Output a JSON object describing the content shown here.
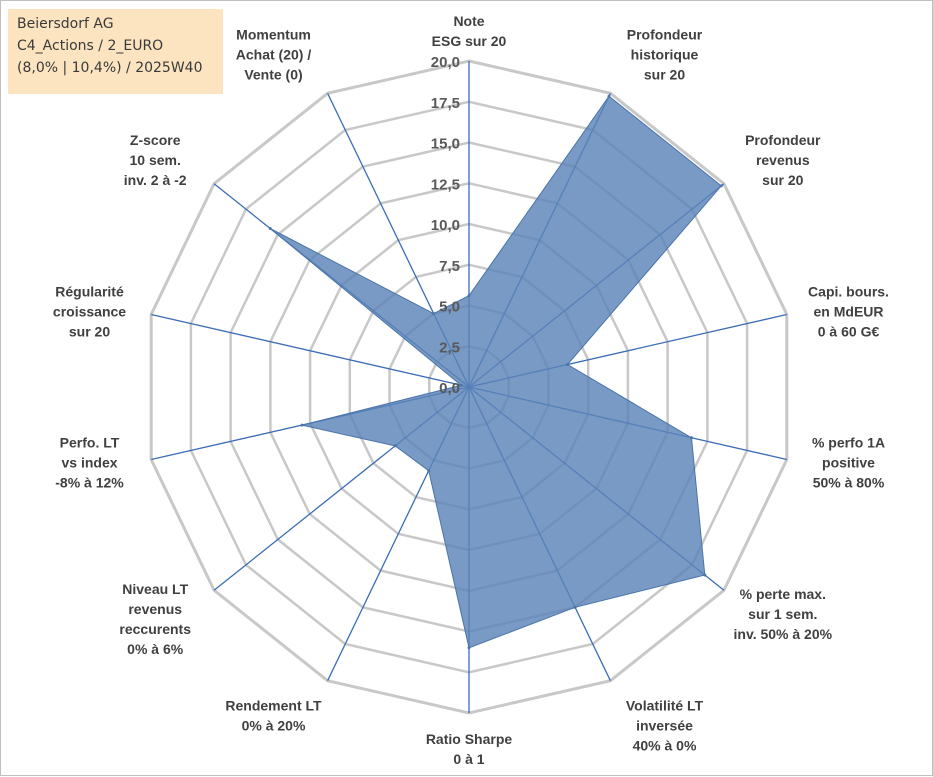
{
  "header": {
    "line1": "Beiersdorf AG",
    "line2": "C4_Actions / 2_EURO",
    "line3": "(8,0% | 10,4%) / 2025W40"
  },
  "chart_data": {
    "type": "radar",
    "title": "",
    "rlim": [
      0,
      20
    ],
    "ticks": [
      "0,0",
      "2,5",
      "5,0",
      "7,5",
      "10,0",
      "12,5",
      "15,0",
      "17,5",
      "20,0"
    ],
    "grid": true,
    "series": [
      {
        "color": "#5b84b8",
        "values": [
          5.6,
          19.8,
          19.8,
          6.2,
          14.0,
          18.5,
          15.0,
          16.0,
          5.7,
          5.8,
          10.5,
          0.5,
          15.6,
          5.0
        ]
      }
    ],
    "categories": [
      [
        "Note",
        "ESG sur 20"
      ],
      [
        "Profondeur",
        "historique",
        "sur 20"
      ],
      [
        "Profondeur",
        "revenus",
        "sur 20"
      ],
      [
        "Capi. bours.",
        "en MdEUR",
        "0 à 60 G€"
      ],
      [
        "% perfo 1A",
        "positive",
        "50% à 80%"
      ],
      [
        "% perte max.",
        "sur 1 sem.",
        "inv. 50% à 20%"
      ],
      [
        "Volatilité LT",
        "inversée",
        "40% à 0%"
      ],
      [
        "Ratio Sharpe",
        "0 à 1"
      ],
      [
        "Rendement LT",
        "0% à 20%"
      ],
      [
        "Niveau LT",
        "revenus",
        "reccurents",
        "0% à 6%"
      ],
      [
        "Perfo. LT",
        "vs index",
        "-8% à 12%"
      ],
      [
        "Régularité",
        "croissance",
        "sur 20"
      ],
      [
        "Z-score",
        "10 sem.",
        "inv. 2 à -2"
      ],
      [
        "Momentum",
        "Achat (20) /",
        "Vente (0)"
      ]
    ],
    "colors": {
      "grid": "#c8c8c8",
      "spoke": "#3b6db5",
      "fill": "#5b84b8",
      "header_bg": "#fce4c0"
    }
  }
}
